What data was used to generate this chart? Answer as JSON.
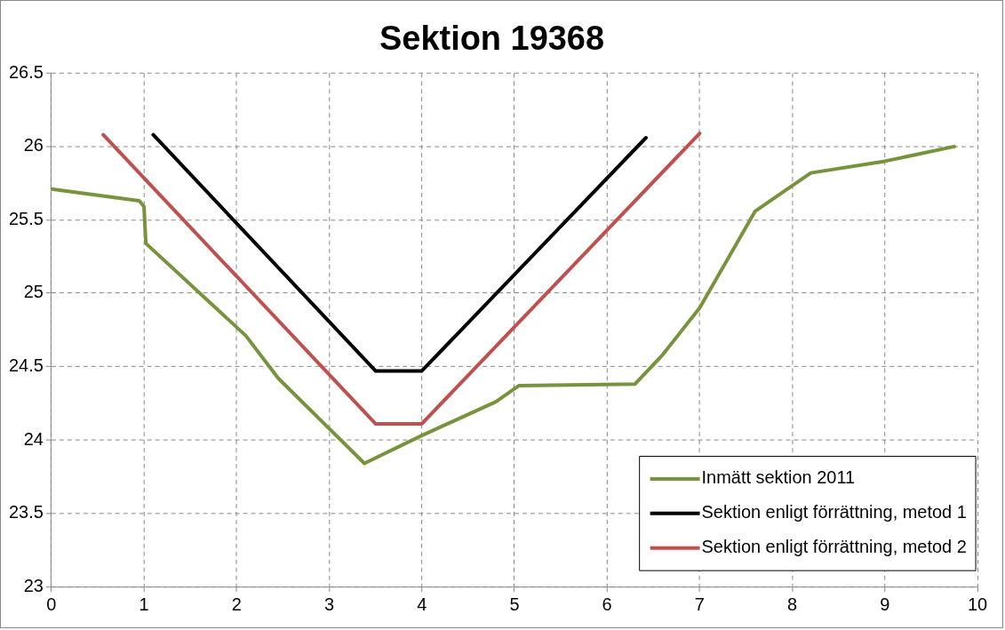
{
  "chart_data": {
    "type": "line",
    "title": "Sektion 19368",
    "xlim": [
      0,
      10
    ],
    "xticks": [
      0,
      1,
      2,
      3,
      4,
      5,
      6,
      7,
      8,
      9,
      10
    ],
    "ylim": [
      23,
      26.5
    ],
    "yticks": [
      23,
      23.5,
      24,
      24.5,
      25,
      25.5,
      26,
      26.5
    ],
    "grid": true,
    "legend": "bottom right",
    "marker": "none",
    "line_style": "solid",
    "series": [
      {
        "name": "Inmätt sektion 2011",
        "color": "#77933c",
        "x": [
          0,
          0.95,
          1.0,
          1.02,
          2.1,
          2.45,
          3.38,
          4.0,
          4.8,
          5.05,
          6.3,
          6.6,
          7.0,
          7.6,
          8.2,
          9.0,
          9.75
        ],
        "values": [
          25.71,
          25.63,
          25.59,
          25.34,
          24.71,
          24.42,
          23.84,
          24.03,
          24.26,
          24.37,
          24.38,
          24.58,
          24.9,
          25.56,
          25.82,
          25.9,
          26.0
        ]
      },
      {
        "name": "Sektion enligt förrättning, metod 1",
        "color": "#000000",
        "x": [
          1.1,
          3.5,
          4.0,
          6.42
        ],
        "values": [
          26.08,
          24.47,
          24.47,
          26.06
        ]
      },
      {
        "name": "Sektion enligt förrättning, metod 2",
        "color": "#c0504d",
        "x": [
          0.56,
          3.5,
          4.0,
          7.0
        ],
        "values": [
          26.08,
          24.11,
          24.11,
          26.09
        ]
      }
    ]
  }
}
